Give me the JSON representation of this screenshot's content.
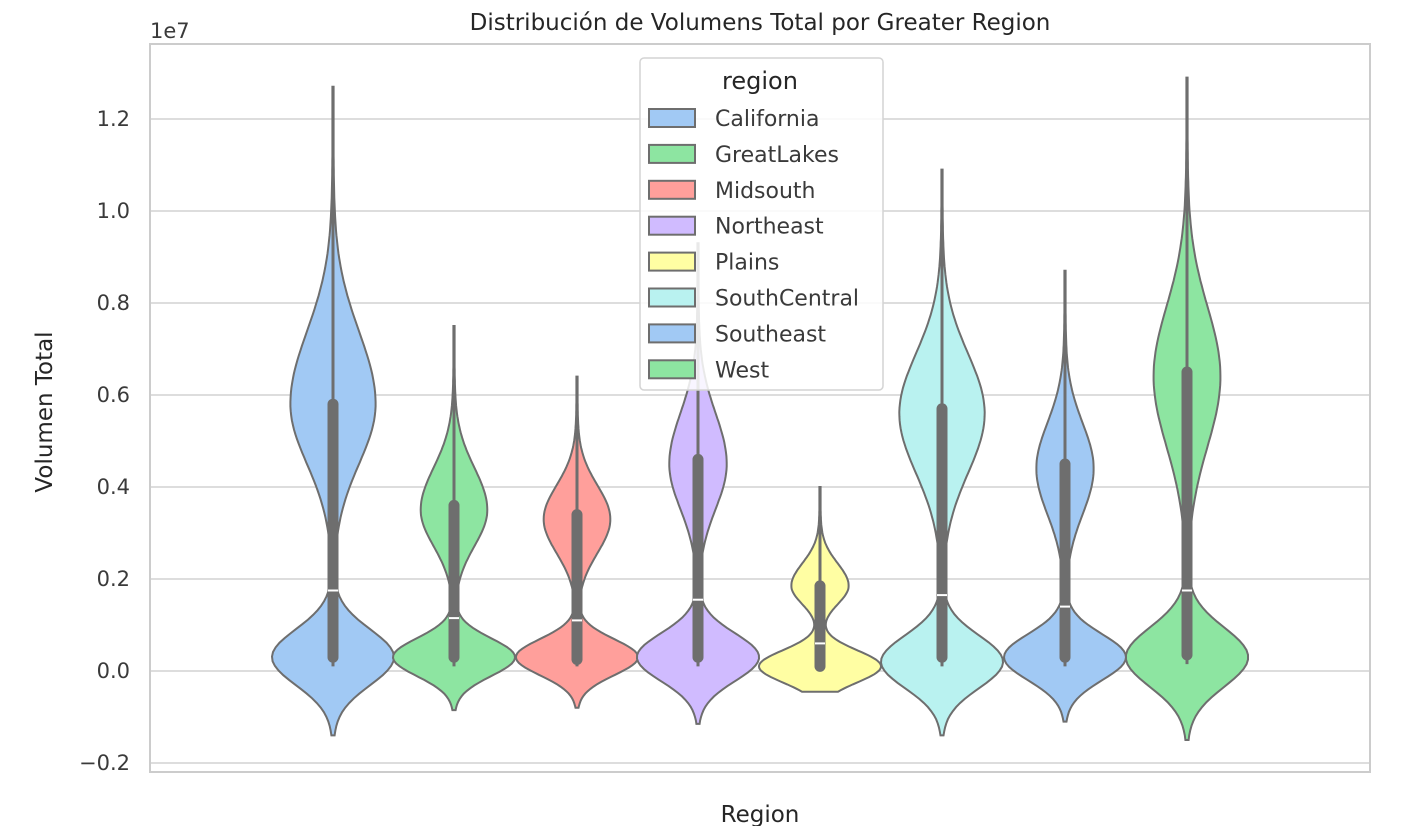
{
  "chart_data": {
    "type": "violin",
    "title": "Distribución de Volumens Total por Greater Region",
    "xlabel": "Region",
    "ylabel": "Volumen Total",
    "y_offset_text": "1e7",
    "ylim": [
      -0.21,
      1.36
    ],
    "yticks": [
      -0.2,
      0.0,
      0.2,
      0.4,
      0.6,
      0.8,
      1.0,
      1.2
    ],
    "ytick_labels": [
      "−0.2",
      "0.0",
      "0.2",
      "0.4",
      "0.6",
      "0.8",
      "1.0",
      "1.2"
    ],
    "grid": true,
    "legend": {
      "title": "region",
      "placement": "upper-center",
      "entries": [
        "California",
        "GreatLakes",
        "Midsouth",
        "Northeast",
        "Plains",
        "SouthCentral",
        "Southeast",
        "West"
      ]
    },
    "series": [
      {
        "name": "California",
        "color": "#a1c9f4",
        "min": 0.01,
        "q1": 0.03,
        "median": 0.175,
        "q3": 0.58,
        "max": 1.27,
        "cut_low": -0.14,
        "cut_high": 1.27,
        "lower_mode": 0.03,
        "upper_mode": 0.58,
        "lower_peak": 0.13,
        "upper_peak": 0.09
      },
      {
        "name": "GreatLakes",
        "color": "#8de5a1",
        "min": 0.01,
        "q1": 0.03,
        "median": 0.115,
        "q3": 0.36,
        "max": 0.75,
        "cut_low": -0.085,
        "cut_high": 0.75,
        "lower_mode": 0.03,
        "upper_mode": 0.35,
        "lower_peak": 0.13,
        "upper_peak": 0.07
      },
      {
        "name": "Midsouth",
        "color": "#ff9f9b",
        "min": 0.01,
        "q1": 0.025,
        "median": 0.11,
        "q3": 0.34,
        "max": 0.64,
        "cut_low": -0.08,
        "cut_high": 0.64,
        "lower_mode": 0.03,
        "upper_mode": 0.33,
        "lower_peak": 0.13,
        "upper_peak": 0.07
      },
      {
        "name": "Northeast",
        "color": "#d0bbff",
        "min": 0.01,
        "q1": 0.03,
        "median": 0.155,
        "q3": 0.46,
        "max": 0.93,
        "cut_low": -0.115,
        "cut_high": 0.93,
        "lower_mode": 0.03,
        "upper_mode": 0.45,
        "lower_peak": 0.13,
        "upper_peak": 0.06
      },
      {
        "name": "Plains",
        "color": "#fffea3",
        "min": 0.005,
        "q1": 0.01,
        "median": 0.06,
        "q3": 0.185,
        "max": 0.4,
        "cut_low": -0.045,
        "cut_high": 0.4,
        "lower_mode": 0.01,
        "upper_mode": 0.185,
        "lower_peak": 0.13,
        "upper_peak": 0.06
      },
      {
        "name": "SouthCentral",
        "color": "#b9f2f0",
        "min": 0.01,
        "q1": 0.03,
        "median": 0.165,
        "q3": 0.57,
        "max": 1.09,
        "cut_low": -0.14,
        "cut_high": 1.09,
        "lower_mode": 0.02,
        "upper_mode": 0.56,
        "lower_peak": 0.13,
        "upper_peak": 0.09
      },
      {
        "name": "Southeast",
        "color": "#a1c9f4",
        "min": 0.01,
        "q1": 0.03,
        "median": 0.14,
        "q3": 0.45,
        "max": 0.87,
        "cut_low": -0.11,
        "cut_high": 0.87,
        "lower_mode": 0.03,
        "upper_mode": 0.44,
        "lower_peak": 0.13,
        "upper_peak": 0.06
      },
      {
        "name": "West",
        "color": "#8de5a1",
        "min": 0.015,
        "q1": 0.035,
        "median": 0.175,
        "q3": 0.65,
        "max": 1.29,
        "cut_low": -0.15,
        "cut_high": 1.29,
        "lower_mode": 0.03,
        "upper_mode": 0.64,
        "lower_peak": 0.13,
        "upper_peak": 0.07
      }
    ]
  }
}
